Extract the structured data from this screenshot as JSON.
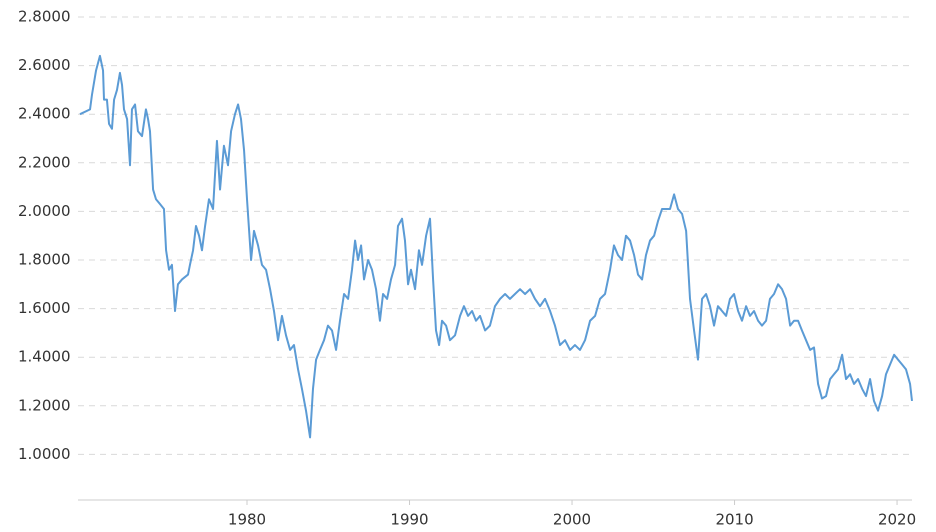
{
  "chart_data": {
    "type": "line",
    "xlim": [
      1969.6,
      2020.92
    ],
    "xticks": [
      1980,
      1990,
      2000,
      2010,
      2020
    ],
    "ylim": [
      0.8,
      2.8
    ],
    "yticks": [
      {
        "value": 1.0,
        "label": "1.0000"
      },
      {
        "value": 1.2,
        "label": "1.2000"
      },
      {
        "value": 1.4,
        "label": "1.4000"
      },
      {
        "value": 1.6,
        "label": "1.6000"
      },
      {
        "value": 1.8,
        "label": "1.8000"
      },
      {
        "value": 2.0,
        "label": "2.0000"
      },
      {
        "value": 2.2,
        "label": "2.2000"
      },
      {
        "value": 2.4,
        "label": "2.4000"
      },
      {
        "value": 2.6,
        "label": "2.6000"
      },
      {
        "value": 2.8,
        "label": "2.8000"
      }
    ],
    "grid": true,
    "color": "#5b9bd5",
    "x": [
      1969.72,
      1970.34,
      1970.46,
      1970.71,
      1970.95,
      1971.14,
      1971.2,
      1971.38,
      1971.51,
      1971.69,
      1971.82,
      1972.0,
      1972.18,
      1972.31,
      1972.43,
      1972.62,
      1972.8,
      1972.92,
      1973.11,
      1973.29,
      1973.54,
      1973.78,
      1973.91,
      1974.03,
      1974.22,
      1974.4,
      1974.65,
      1974.89,
      1975.02,
      1975.2,
      1975.38,
      1975.57,
      1975.75,
      1976.0,
      1976.37,
      1976.49,
      1976.68,
      1976.86,
      1977.05,
      1977.23,
      1977.42,
      1977.66,
      1977.91,
      1978.15,
      1978.34,
      1978.58,
      1978.83,
      1979.02,
      1979.26,
      1979.45,
      1979.63,
      1979.82,
      1980.0,
      1980.25,
      1980.43,
      1980.68,
      1980.92,
      1981.17,
      1981.42,
      1981.66,
      1981.91,
      1982.15,
      1982.4,
      1982.65,
      1982.89,
      1983.14,
      1983.38,
      1983.63,
      1983.88,
      1984.06,
      1984.25,
      1984.49,
      1984.74,
      1984.98,
      1985.23,
      1985.48,
      1985.72,
      1985.97,
      1986.22,
      1986.46,
      1986.65,
      1986.83,
      1987.02,
      1987.2,
      1987.45,
      1987.69,
      1987.94,
      1988.18,
      1988.37,
      1988.62,
      1988.86,
      1989.11,
      1989.29,
      1989.54,
      1989.72,
      1989.91,
      1990.09,
      1990.34,
      1990.58,
      1990.77,
      1991.02,
      1991.26,
      1991.45,
      1991.63,
      1991.82,
      1992.0,
      1992.25,
      1992.49,
      1992.8,
      1993.11,
      1993.35,
      1993.6,
      1993.85,
      1994.09,
      1994.34,
      1994.65,
      1994.95,
      1995.26,
      1995.57,
      1995.88,
      1996.18,
      1996.49,
      1996.8,
      1997.11,
      1997.42,
      1997.72,
      1998.03,
      1998.34,
      1998.65,
      1998.95,
      1999.26,
      1999.57,
      1999.88,
      2000.18,
      2000.49,
      2000.8,
      2001.11,
      2001.42,
      2001.72,
      2002.03,
      2002.34,
      2002.58,
      2002.83,
      2003.08,
      2003.32,
      2003.57,
      2003.82,
      2004.06,
      2004.31,
      2004.55,
      2004.8,
      2005.05,
      2005.29,
      2005.54,
      2005.78,
      2006.03,
      2006.28,
      2006.52,
      2006.77,
      2007.02,
      2007.26,
      2007.51,
      2007.75,
      2008.0,
      2008.25,
      2008.49,
      2008.74,
      2008.98,
      2009.23,
      2009.48,
      2009.72,
      2009.97,
      2010.22,
      2010.46,
      2010.71,
      2010.95,
      2011.2,
      2011.45,
      2011.69,
      2011.94,
      2012.18,
      2012.43,
      2012.68,
      2012.92,
      2013.17,
      2013.42,
      2013.66,
      2013.91,
      2014.15,
      2014.4,
      2014.65,
      2014.89,
      2015.14,
      2015.38,
      2015.63,
      2015.88,
      2016.12,
      2016.37,
      2016.62,
      2016.86,
      2017.11,
      2017.35,
      2017.6,
      2017.85,
      2018.09,
      2018.34,
      2018.58,
      2018.83,
      2019.08,
      2019.32,
      2019.57,
      2019.82,
      2020.06,
      2020.31,
      2020.55,
      2020.8,
      2020.92
    ],
    "values": [
      2.4,
      2.42,
      2.48,
      2.58,
      2.64,
      2.58,
      2.46,
      2.46,
      2.36,
      2.34,
      2.46,
      2.5,
      2.57,
      2.52,
      2.42,
      2.38,
      2.19,
      2.42,
      2.44,
      2.33,
      2.31,
      2.42,
      2.38,
      2.33,
      2.09,
      2.05,
      2.03,
      2.01,
      1.84,
      1.76,
      1.78,
      1.59,
      1.7,
      1.72,
      1.74,
      1.78,
      1.84,
      1.94,
      1.9,
      1.84,
      1.94,
      2.05,
      2.01,
      2.29,
      2.09,
      2.27,
      2.19,
      2.33,
      2.4,
      2.44,
      2.38,
      2.25,
      2.05,
      1.8,
      1.92,
      1.86,
      1.78,
      1.76,
      1.68,
      1.59,
      1.47,
      1.57,
      1.49,
      1.43,
      1.45,
      1.35,
      1.27,
      1.18,
      1.07,
      1.27,
      1.39,
      1.43,
      1.47,
      1.53,
      1.51,
      1.43,
      1.55,
      1.66,
      1.64,
      1.76,
      1.88,
      1.8,
      1.86,
      1.72,
      1.8,
      1.76,
      1.68,
      1.55,
      1.66,
      1.64,
      1.72,
      1.78,
      1.94,
      1.97,
      1.88,
      1.7,
      1.76,
      1.68,
      1.84,
      1.78,
      1.9,
      1.97,
      1.72,
      1.51,
      1.45,
      1.55,
      1.53,
      1.47,
      1.49,
      1.57,
      1.61,
      1.57,
      1.59,
      1.55,
      1.57,
      1.51,
      1.53,
      1.61,
      1.64,
      1.66,
      1.64,
      1.66,
      1.68,
      1.66,
      1.68,
      1.64,
      1.61,
      1.64,
      1.59,
      1.53,
      1.45,
      1.47,
      1.43,
      1.45,
      1.43,
      1.47,
      1.55,
      1.57,
      1.64,
      1.66,
      1.76,
      1.86,
      1.82,
      1.8,
      1.9,
      1.88,
      1.82,
      1.74,
      1.72,
      1.82,
      1.88,
      1.9,
      1.96,
      2.01,
      2.01,
      2.01,
      2.07,
      2.01,
      1.99,
      1.92,
      1.64,
      1.51,
      1.39,
      1.64,
      1.66,
      1.61,
      1.53,
      1.61,
      1.59,
      1.57,
      1.64,
      1.66,
      1.59,
      1.55,
      1.61,
      1.57,
      1.59,
      1.55,
      1.53,
      1.55,
      1.64,
      1.66,
      1.7,
      1.68,
      1.64,
      1.53,
      1.55,
      1.55,
      1.51,
      1.47,
      1.43,
      1.44,
      1.29,
      1.23,
      1.24,
      1.31,
      1.33,
      1.35,
      1.41,
      1.31,
      1.33,
      1.29,
      1.31,
      1.27,
      1.24,
      1.31,
      1.22,
      1.18,
      1.24,
      1.33,
      1.37,
      1.41,
      1.39,
      1.37,
      1.35,
      1.29,
      1.22
    ]
  }
}
